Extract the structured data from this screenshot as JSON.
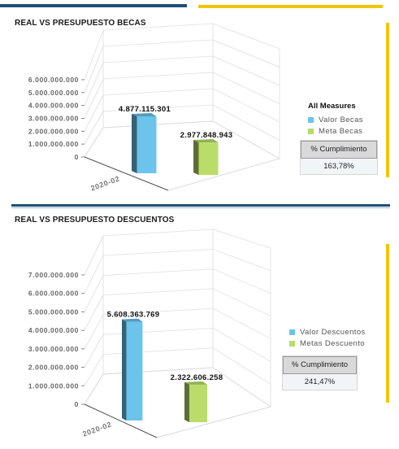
{
  "colors": {
    "navy": "#1f4e79",
    "yellow": "#f5c400",
    "valor": "#6cc3ec",
    "meta": "#b9dc6a"
  },
  "chart_data": [
    {
      "type": "bar",
      "title": "REAL VS PRESUPUESTO BECAS",
      "categories": [
        "2020-02"
      ],
      "series": [
        {
          "name": "Valor Becas",
          "values": [
            4877115301
          ],
          "label": "4.877.115.301",
          "color": "#6cc3ec"
        },
        {
          "name": "Meta Becas",
          "values": [
            2977848943
          ],
          "label": "2.977.848.943",
          "color": "#b9dc6a"
        }
      ],
      "ylim": [
        0,
        6000000000
      ],
      "yticks": [
        0,
        1000000000,
        2000000000,
        3000000000,
        4000000000,
        5000000000,
        6000000000
      ],
      "ytick_labels": [
        "0",
        "1.000.000.000",
        "2.000.000.000",
        "3.000.000.000",
        "4.000.000.000",
        "5.000.000.000",
        "6.000.000.000"
      ],
      "legend_title": "All Measures",
      "legend_position": "right",
      "kpi": {
        "label": "% Cumplimiento",
        "value": "163,78%"
      }
    },
    {
      "type": "bar",
      "title": "REAL VS PRESUPUESTO DESCUENTOS",
      "categories": [
        "2020-02"
      ],
      "series": [
        {
          "name": "Valor Descuentos",
          "values": [
            5608363769
          ],
          "label": "5.608.363.769",
          "color": "#6cc3ec"
        },
        {
          "name": "Metas Descuento",
          "values": [
            2322606258
          ],
          "label": "2.322.606.258",
          "color": "#b9dc6a"
        }
      ],
      "ylim": [
        0,
        7000000000
      ],
      "yticks": [
        0,
        1000000000,
        2000000000,
        3000000000,
        4000000000,
        5000000000,
        6000000000,
        7000000000
      ],
      "ytick_labels": [
        "0",
        "1.000.000.000",
        "2.000.000.000",
        "3.000.000.000",
        "4.000.000.000",
        "5.000.000.000",
        "6.000.000.000",
        "7.000.000.000"
      ],
      "legend_title": "",
      "legend_position": "right",
      "kpi": {
        "label": "% Cumplimiento",
        "value": "241,47%"
      }
    }
  ]
}
